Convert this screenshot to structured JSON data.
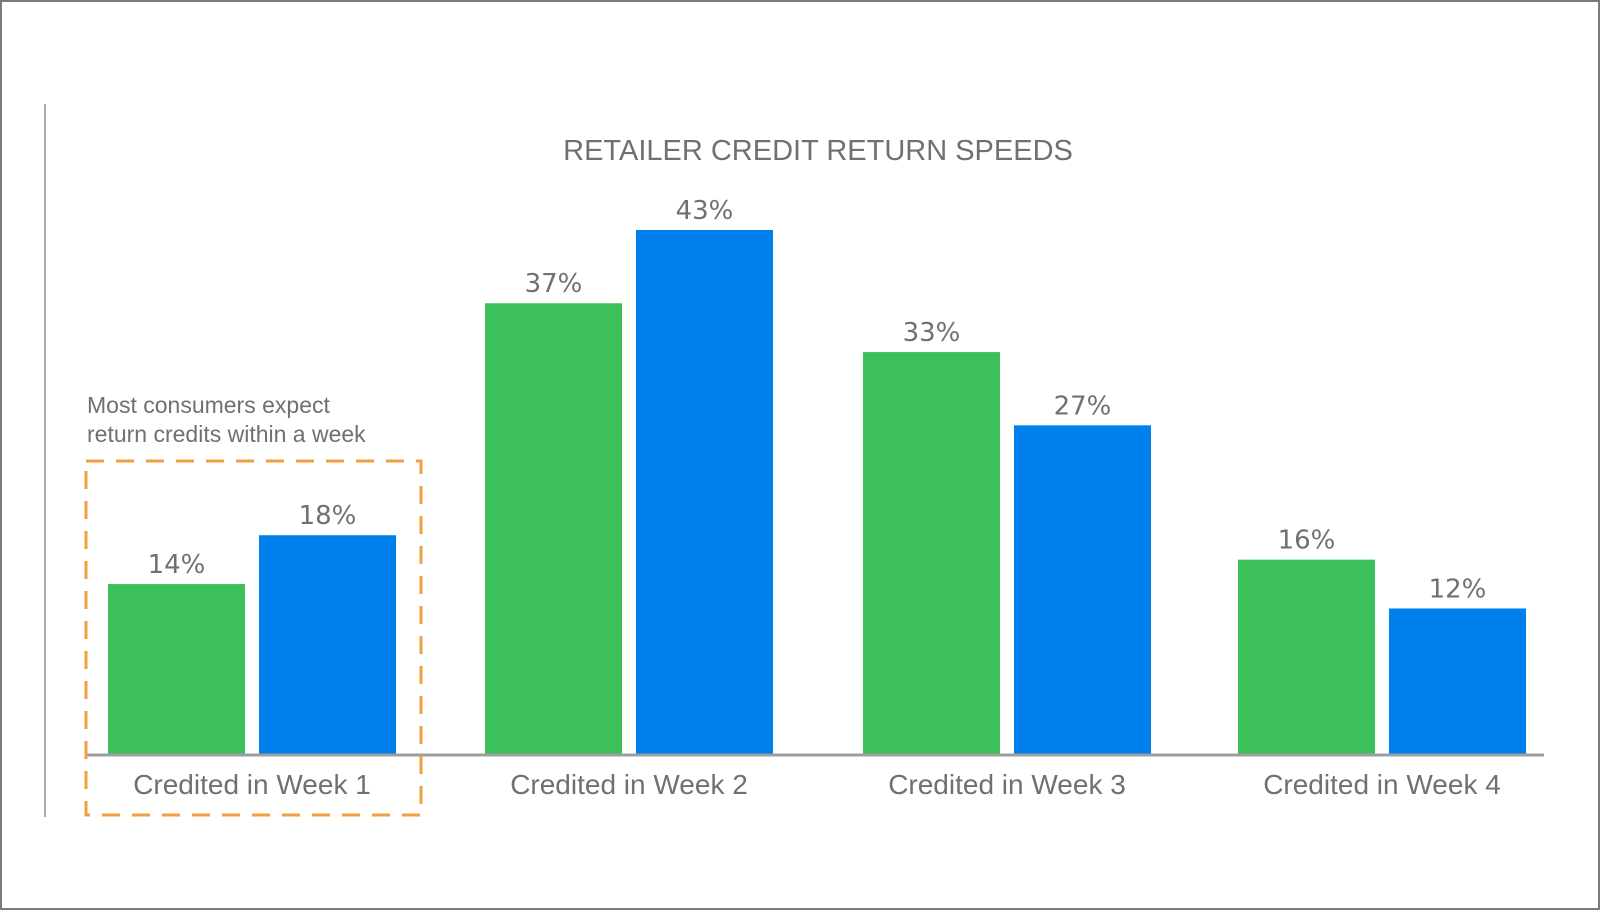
{
  "chart_data": {
    "type": "bar",
    "title": "RETAILER CREDIT RETURN SPEEDS",
    "categories": [
      "Credited in Week 1",
      "Credited in Week 2",
      "Credited in Week 3",
      "Credited in Week 4"
    ],
    "series": [
      {
        "values": [
          14,
          37,
          33,
          16
        ],
        "value_labels": [
          "14%",
          "37%",
          "33%",
          "16%"
        ],
        "color": "#3cc15a"
      },
      {
        "values": [
          18,
          43,
          27,
          12
        ],
        "value_labels": [
          "18%",
          "43%",
          "27%",
          "12%"
        ],
        "color": "#0080ec"
      }
    ],
    "ylim": [
      0,
      50
    ],
    "grid": false,
    "legend": "none",
    "annotation": {
      "lines": [
        "Most consumers expect",
        "return credits within a week"
      ],
      "highlight_category": "Credited in Week 1",
      "highlight_color": "#f0a040"
    }
  }
}
